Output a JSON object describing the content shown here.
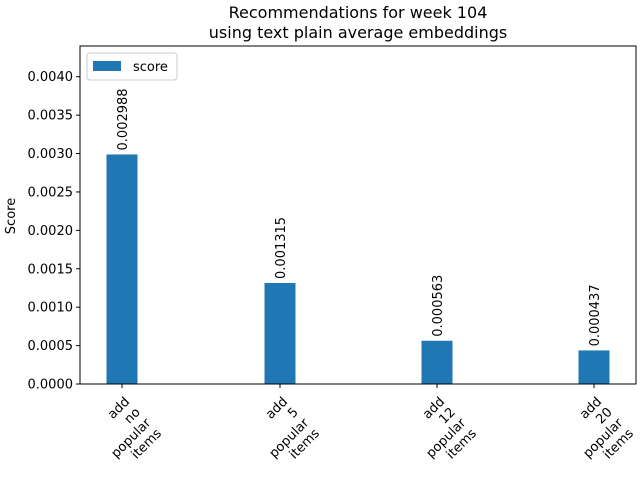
{
  "chart_data": {
    "type": "bar",
    "title": "Recommendations for week 104",
    "subtitle": "using text plain average embeddings",
    "xlabel": "",
    "ylabel": "Score",
    "ylim": [
      0,
      0.0044
    ],
    "yticks": [
      "0.0000",
      "0.0005",
      "0.0010",
      "0.0015",
      "0.0020",
      "0.0025",
      "0.0030",
      "0.0035",
      "0.0040"
    ],
    "categories": [
      [
        "add",
        "no",
        "popular",
        "items"
      ],
      [
        "add",
        "5",
        "popular",
        "items"
      ],
      [
        "add",
        "12",
        "popular",
        "items"
      ],
      [
        "add",
        "20",
        "popular",
        "items"
      ]
    ],
    "series": [
      {
        "name": "score",
        "values": [
          0.002988,
          0.001315,
          0.000563,
          0.000437
        ],
        "color": "#1f77b4"
      }
    ],
    "data_labels": [
      "0.002988",
      "0.001315",
      "0.000563",
      "0.000437"
    ],
    "legend": {
      "position": "top-left",
      "entries": [
        "score"
      ]
    },
    "grid": false
  }
}
